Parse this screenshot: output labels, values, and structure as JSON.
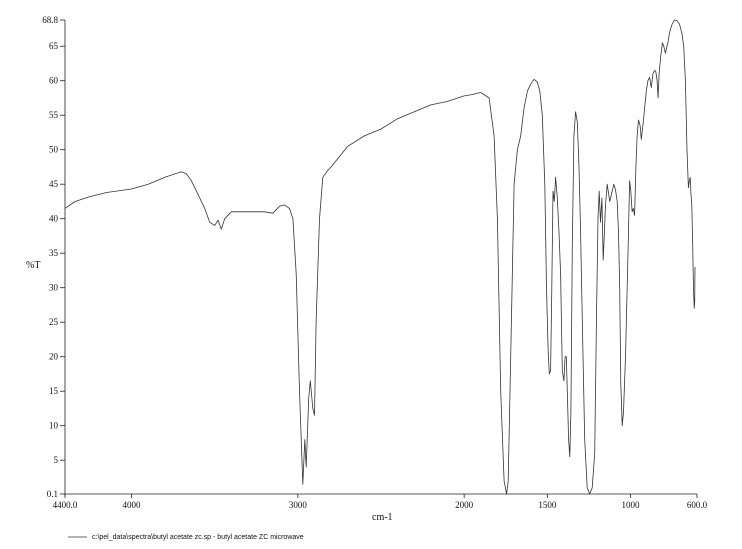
{
  "chart_data": {
    "type": "line",
    "title": "",
    "xlabel": "cm-1",
    "ylabel": "%T",
    "xlim": [
      4400.0,
      600.0
    ],
    "ylim": [
      0.1,
      68.8
    ],
    "x_axis_reversed": true,
    "grid": false,
    "x_ticks": [
      {
        "value": 4400,
        "label": "4400.0"
      },
      {
        "value": 4000,
        "label": "4000"
      },
      {
        "value": 3000,
        "label": "3000"
      },
      {
        "value": 2000,
        "label": "2000"
      },
      {
        "value": 1500,
        "label": "1500"
      },
      {
        "value": 1000,
        "label": "1000"
      },
      {
        "value": 600,
        "label": "600.0"
      }
    ],
    "y_ticks": [
      {
        "value": 0.1,
        "label": "0.1"
      },
      {
        "value": 5,
        "label": "5"
      },
      {
        "value": 10,
        "label": "10"
      },
      {
        "value": 15,
        "label": "15"
      },
      {
        "value": 20,
        "label": "20"
      },
      {
        "value": 25,
        "label": "25"
      },
      {
        "value": 30,
        "label": "30"
      },
      {
        "value": 35,
        "label": "35"
      },
      {
        "value": 40,
        "label": "40"
      },
      {
        "value": 45,
        "label": "45"
      },
      {
        "value": 50,
        "label": "50"
      },
      {
        "value": 55,
        "label": "55"
      },
      {
        "value": 60,
        "label": "60"
      },
      {
        "value": 65,
        "label": "65"
      },
      {
        "value": 68.8,
        "label": "68.8"
      }
    ],
    "series": [
      {
        "color": "#333333",
        "points": [
          [
            4400,
            41.5
          ],
          [
            4340,
            42.5
          ],
          [
            4250,
            43.2
          ],
          [
            4150,
            43.8
          ],
          [
            4000,
            44.3
          ],
          [
            3900,
            45.0
          ],
          [
            3800,
            46.0
          ],
          [
            3700,
            46.8
          ],
          [
            3670,
            46.5
          ],
          [
            3640,
            45.5
          ],
          [
            3600,
            43.5
          ],
          [
            3560,
            41.5
          ],
          [
            3530,
            39.5
          ],
          [
            3500,
            39.0
          ],
          [
            3480,
            39.8
          ],
          [
            3460,
            38.5
          ],
          [
            3440,
            40.0
          ],
          [
            3400,
            41.0
          ],
          [
            3300,
            41.0
          ],
          [
            3200,
            41.0
          ],
          [
            3150,
            40.8
          ],
          [
            3110,
            41.8
          ],
          [
            3080,
            42.0
          ],
          [
            3050,
            41.5
          ],
          [
            3030,
            40.0
          ],
          [
            3010,
            32.0
          ],
          [
            2990,
            15.0
          ],
          [
            2970,
            1.5
          ],
          [
            2958,
            8.0
          ],
          [
            2950,
            4.0
          ],
          [
            2935,
            14.0
          ],
          [
            2925,
            16.5
          ],
          [
            2910,
            12.5
          ],
          [
            2900,
            11.5
          ],
          [
            2890,
            25.0
          ],
          [
            2870,
            40.0
          ],
          [
            2850,
            46.0
          ],
          [
            2820,
            47.0
          ],
          [
            2800,
            47.5
          ],
          [
            2750,
            49.0
          ],
          [
            2700,
            50.5
          ],
          [
            2600,
            52.0
          ],
          [
            2500,
            53.0
          ],
          [
            2400,
            54.5
          ],
          [
            2300,
            55.5
          ],
          [
            2200,
            56.5
          ],
          [
            2100,
            57.0
          ],
          [
            2000,
            57.8
          ],
          [
            1950,
            58.0
          ],
          [
            1900,
            58.3
          ],
          [
            1850,
            57.5
          ],
          [
            1820,
            52.0
          ],
          [
            1800,
            40.0
          ],
          [
            1780,
            15.0
          ],
          [
            1760,
            2.0
          ],
          [
            1745,
            0.1
          ],
          [
            1735,
            2.0
          ],
          [
            1720,
            20.0
          ],
          [
            1700,
            45.0
          ],
          [
            1680,
            50.0
          ],
          [
            1660,
            52.0
          ],
          [
            1640,
            56.0
          ],
          [
            1620,
            58.5
          ],
          [
            1600,
            59.5
          ],
          [
            1580,
            60.2
          ],
          [
            1560,
            59.8
          ],
          [
            1545,
            58.5
          ],
          [
            1530,
            55.0
          ],
          [
            1515,
            45.0
          ],
          [
            1505,
            30.0
          ],
          [
            1495,
            21.0
          ],
          [
            1488,
            17.5
          ],
          [
            1480,
            18.0
          ],
          [
            1473,
            30.0
          ],
          [
            1466,
            44.0
          ],
          [
            1458,
            42.5
          ],
          [
            1450,
            46.0
          ],
          [
            1440,
            43.0
          ],
          [
            1430,
            38.0
          ],
          [
            1420,
            32.0
          ],
          [
            1410,
            18.0
          ],
          [
            1400,
            16.5
          ],
          [
            1393,
            20.0
          ],
          [
            1386,
            20.0
          ],
          [
            1380,
            15.0
          ],
          [
            1372,
            8.0
          ],
          [
            1365,
            5.5
          ],
          [
            1358,
            12.0
          ],
          [
            1350,
            36.0
          ],
          [
            1340,
            52.0
          ],
          [
            1330,
            55.5
          ],
          [
            1320,
            54.0
          ],
          [
            1310,
            48.0
          ],
          [
            1300,
            38.0
          ],
          [
            1290,
            26.0
          ],
          [
            1275,
            8.0
          ],
          [
            1260,
            1.0
          ],
          [
            1245,
            0.1
          ],
          [
            1230,
            1.0
          ],
          [
            1215,
            6.0
          ],
          [
            1205,
            25.0
          ],
          [
            1195,
            40.0
          ],
          [
            1188,
            44.0
          ],
          [
            1180,
            39.5
          ],
          [
            1172,
            43.0
          ],
          [
            1164,
            34.0
          ],
          [
            1157,
            38.0
          ],
          [
            1150,
            42.0
          ],
          [
            1140,
            45.0
          ],
          [
            1125,
            42.5
          ],
          [
            1110,
            44.0
          ],
          [
            1100,
            45.0
          ],
          [
            1090,
            44.2
          ],
          [
            1080,
            42.5
          ],
          [
            1072,
            38.0
          ],
          [
            1065,
            30.0
          ],
          [
            1058,
            16.0
          ],
          [
            1050,
            10.0
          ],
          [
            1042,
            12.0
          ],
          [
            1030,
            20.0
          ],
          [
            1015,
            35.0
          ],
          [
            1005,
            45.5
          ],
          [
            998,
            44.0
          ],
          [
            990,
            41.0
          ],
          [
            983,
            41.5
          ],
          [
            975,
            40.5
          ],
          [
            968,
            47.0
          ],
          [
            960,
            52.0
          ],
          [
            952,
            54.3
          ],
          [
            942,
            53.5
          ],
          [
            935,
            51.5
          ],
          [
            925,
            53.5
          ],
          [
            915,
            56.0
          ],
          [
            905,
            58.5
          ],
          [
            895,
            60.0
          ],
          [
            885,
            60.5
          ],
          [
            875,
            59.0
          ],
          [
            865,
            61.0
          ],
          [
            855,
            61.5
          ],
          [
            848,
            61.3
          ],
          [
            840,
            60.0
          ],
          [
            834,
            57.5
          ],
          [
            828,
            61.0
          ],
          [
            818,
            63.5
          ],
          [
            808,
            65.5
          ],
          [
            800,
            65.0
          ],
          [
            790,
            64.0
          ],
          [
            782,
            64.8
          ],
          [
            775,
            65.5
          ],
          [
            765,
            67.0
          ],
          [
            750,
            68.2
          ],
          [
            735,
            68.8
          ],
          [
            720,
            68.7
          ],
          [
            705,
            68.2
          ],
          [
            690,
            66.8
          ],
          [
            680,
            65.0
          ],
          [
            670,
            60.0
          ],
          [
            660,
            50.0
          ],
          [
            652,
            44.5
          ],
          [
            646,
            45.5
          ],
          [
            641,
            46.0
          ],
          [
            636,
            43.5
          ],
          [
            631,
            42.0
          ],
          [
            626,
            36.0
          ],
          [
            621,
            30.0
          ],
          [
            617,
            27.0
          ],
          [
            614,
            28.0
          ],
          [
            612,
            33.0
          ]
        ]
      }
    ],
    "caption": {
      "line_color": "#333333",
      "text": "c:\\pel_data\\spectra\\butyl acetate zc.sp - butyl acetate ZC microwave"
    }
  }
}
